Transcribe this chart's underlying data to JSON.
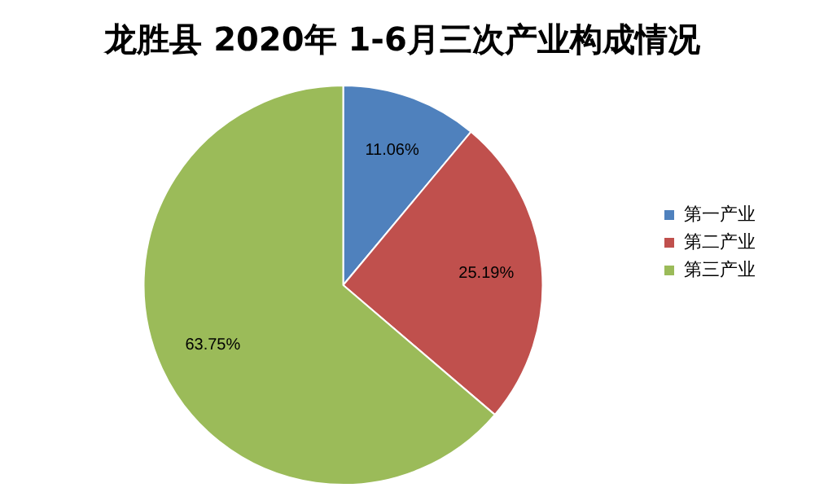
{
  "chart_data": {
    "type": "pie",
    "title": "龙胜县 2020年 1-6月三次产业构成情况",
    "categories": [
      "第一产业",
      "第二产业",
      "第三产业"
    ],
    "values": [
      11.06,
      25.19,
      63.75
    ],
    "colors": [
      "#4f81bd",
      "#c0504d",
      "#9bbb59"
    ],
    "value_labels": [
      "11.06%",
      "25.19%",
      "63.75%"
    ],
    "legend": "right"
  }
}
